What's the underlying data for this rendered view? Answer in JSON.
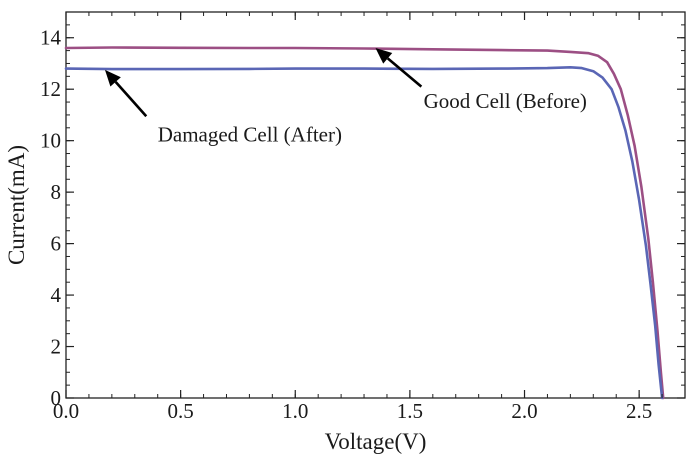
{
  "chart_data": {
    "type": "line",
    "title": "",
    "xlabel": "Voltage(V)",
    "ylabel": "Current(mA)",
    "xlim": [
      0.0,
      2.7
    ],
    "ylim": [
      0,
      15
    ],
    "x_ticks": [
      0.0,
      0.5,
      1.0,
      1.5,
      2.0,
      2.5
    ],
    "x_tick_labels": [
      "0.0",
      "0.5",
      "1.0",
      "1.5",
      "2.0",
      "2.5"
    ],
    "y_ticks": [
      0,
      2,
      4,
      6,
      8,
      10,
      12,
      14
    ],
    "y_tick_labels": [
      "0",
      "2",
      "4",
      "6",
      "8",
      "10",
      "12",
      "14"
    ],
    "grid": false,
    "series": [
      {
        "name": "Good Cell (Before)",
        "color": "#9c4f84",
        "points": [
          [
            0.0,
            13.6
          ],
          [
            0.2,
            13.62
          ],
          [
            0.5,
            13.61
          ],
          [
            0.8,
            13.6
          ],
          [
            1.0,
            13.6
          ],
          [
            1.3,
            13.58
          ],
          [
            1.6,
            13.55
          ],
          [
            1.9,
            13.52
          ],
          [
            2.1,
            13.5
          ],
          [
            2.2,
            13.45
          ],
          [
            2.28,
            13.4
          ],
          [
            2.32,
            13.3
          ],
          [
            2.36,
            13.05
          ],
          [
            2.39,
            12.6
          ],
          [
            2.42,
            12.0
          ],
          [
            2.45,
            11.0
          ],
          [
            2.48,
            9.8
          ],
          [
            2.51,
            8.2
          ],
          [
            2.54,
            6.2
          ],
          [
            2.56,
            4.5
          ],
          [
            2.58,
            2.6
          ],
          [
            2.595,
            1.0
          ],
          [
            2.605,
            0.0
          ]
        ]
      },
      {
        "name": "Damaged Cell (After)",
        "color": "#5a66b5",
        "points": [
          [
            0.0,
            12.8
          ],
          [
            0.2,
            12.78
          ],
          [
            0.5,
            12.78
          ],
          [
            0.8,
            12.79
          ],
          [
            1.0,
            12.8
          ],
          [
            1.3,
            12.8
          ],
          [
            1.6,
            12.79
          ],
          [
            1.9,
            12.8
          ],
          [
            2.1,
            12.82
          ],
          [
            2.2,
            12.85
          ],
          [
            2.25,
            12.82
          ],
          [
            2.3,
            12.7
          ],
          [
            2.34,
            12.45
          ],
          [
            2.38,
            12.0
          ],
          [
            2.41,
            11.3
          ],
          [
            2.44,
            10.4
          ],
          [
            2.47,
            9.2
          ],
          [
            2.5,
            7.7
          ],
          [
            2.53,
            5.9
          ],
          [
            2.55,
            4.4
          ],
          [
            2.57,
            2.8
          ],
          [
            2.585,
            1.3
          ],
          [
            2.6,
            0.0
          ]
        ]
      }
    ],
    "annotations": [
      {
        "text": "Good Cell (Before)",
        "arrow_tip": [
          1.35,
          13.6
        ],
        "arrow_tail": [
          1.55,
          12.1
        ],
        "text_pos": [
          1.56,
          11.5
        ]
      },
      {
        "text": "Damaged Cell (After)",
        "arrow_tip": [
          0.17,
          12.75
        ],
        "arrow_tail": [
          0.35,
          10.95
        ],
        "text_pos": [
          0.4,
          10.2
        ]
      }
    ]
  }
}
